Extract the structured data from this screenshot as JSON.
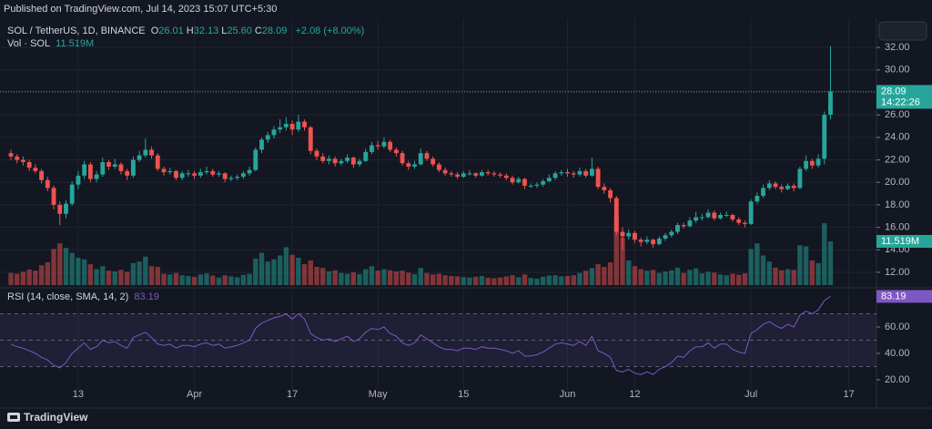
{
  "chart_data": {
    "type": "candlestick",
    "published": "Published on TradingView.com, Jul 14, 2023 15:07 UTC+5:30",
    "symbol": "SOL / TetherUS, 1D, BINANCE",
    "ohlc_prefixes": [
      "O",
      "H",
      "L",
      "C"
    ],
    "ohlc_value_labels": [
      "26.01",
      "32.13",
      "25.60",
      "28.09"
    ],
    "change_label": "+2.08 (+8.00%)",
    "volume_title": "Vol · SOL",
    "volume_last_label": "11.519M",
    "rsi_title": "RSI (14, close, SMA, 14, 2)",
    "countdown": "14:22:26",
    "brand": "TradingView",
    "up_color": "#26a69a",
    "down_color": "#ef5350",
    "grid": true,
    "categories": [
      null,
      null,
      null,
      null,
      null,
      null,
      null,
      null,
      null,
      null,
      null,
      "13",
      null,
      null,
      null,
      null,
      null,
      null,
      null,
      null,
      null,
      null,
      null,
      null,
      null,
      null,
      null,
      null,
      null,
      null,
      "Apr",
      null,
      null,
      null,
      null,
      null,
      null,
      null,
      null,
      null,
      null,
      null,
      null,
      null,
      null,
      null,
      "17",
      null,
      null,
      null,
      null,
      null,
      null,
      null,
      null,
      null,
      null,
      null,
      null,
      null,
      "May",
      null,
      null,
      null,
      null,
      null,
      null,
      null,
      null,
      null,
      null,
      null,
      null,
      null,
      "15",
      null,
      null,
      null,
      null,
      null,
      null,
      null,
      null,
      null,
      null,
      null,
      null,
      null,
      null,
      null,
      null,
      "Jun",
      null,
      null,
      null,
      null,
      null,
      null,
      null,
      null,
      null,
      null,
      "12",
      null,
      null,
      null,
      null,
      null,
      null,
      null,
      null,
      null,
      null,
      null,
      null,
      null,
      null,
      null,
      null,
      null,
      null,
      "Jul",
      null,
      null,
      null,
      null,
      null,
      null,
      null,
      null,
      null,
      null,
      null,
      null,
      null,
      null,
      null,
      "17"
    ],
    "ohlc": [
      [
        22.6,
        22.9,
        22.0,
        22.3
      ],
      [
        22.3,
        22.5,
        21.7,
        22.0
      ],
      [
        22.0,
        22.3,
        21.5,
        21.8
      ],
      [
        21.8,
        22.0,
        21.0,
        21.3
      ],
      [
        21.3,
        21.6,
        20.8,
        21.0
      ],
      [
        21.0,
        21.2,
        19.9,
        20.2
      ],
      [
        20.2,
        20.5,
        19.2,
        19.5
      ],
      [
        19.5,
        19.7,
        17.6,
        18.0
      ],
      [
        18.0,
        18.3,
        16.2,
        17.2
      ],
      [
        17.2,
        18.4,
        16.8,
        18.1
      ],
      [
        18.1,
        20.1,
        17.9,
        19.8
      ],
      [
        19.8,
        21.0,
        19.4,
        20.6
      ],
      [
        20.6,
        21.9,
        20.3,
        21.6
      ],
      [
        21.6,
        21.8,
        20.0,
        20.3
      ],
      [
        20.3,
        21.0,
        20.0,
        20.7
      ],
      [
        20.7,
        22.2,
        20.5,
        21.8
      ],
      [
        21.8,
        22.0,
        21.1,
        21.4
      ],
      [
        21.4,
        22.1,
        21.2,
        21.6
      ],
      [
        21.6,
        21.8,
        20.7,
        21.0
      ],
      [
        21.0,
        21.2,
        20.2,
        20.6
      ],
      [
        20.6,
        22.3,
        20.4,
        22.0
      ],
      [
        22.0,
        22.8,
        21.8,
        22.4
      ],
      [
        22.4,
        23.9,
        22.2,
        22.9
      ],
      [
        22.9,
        23.2,
        22.1,
        22.4
      ],
      [
        22.4,
        22.6,
        21.0,
        21.2
      ],
      [
        21.2,
        21.4,
        20.6,
        20.9
      ],
      [
        20.9,
        21.3,
        20.7,
        21.0
      ],
      [
        21.0,
        21.1,
        20.2,
        20.4
      ],
      [
        20.4,
        21.0,
        20.2,
        20.8
      ],
      [
        20.8,
        21.1,
        20.5,
        20.8
      ],
      [
        20.8,
        21.0,
        20.3,
        20.6
      ],
      [
        20.6,
        21.2,
        20.4,
        20.9
      ],
      [
        20.9,
        21.4,
        20.7,
        21.0
      ],
      [
        21.0,
        21.2,
        20.5,
        20.7
      ],
      [
        20.7,
        21.0,
        20.5,
        20.8
      ],
      [
        20.8,
        20.9,
        20.0,
        20.3
      ],
      [
        20.3,
        20.6,
        20.1,
        20.4
      ],
      [
        20.4,
        20.7,
        20.2,
        20.5
      ],
      [
        20.5,
        21.0,
        20.3,
        20.8
      ],
      [
        20.8,
        21.4,
        20.6,
        21.1
      ],
      [
        21.1,
        23.1,
        21.0,
        22.9
      ],
      [
        22.9,
        24.0,
        22.6,
        23.8
      ],
      [
        23.8,
        24.5,
        23.5,
        24.2
      ],
      [
        24.2,
        25.0,
        23.9,
        24.7
      ],
      [
        24.7,
        25.6,
        24.4,
        24.9
      ],
      [
        24.9,
        25.8,
        24.6,
        25.2
      ],
      [
        25.2,
        25.5,
        24.2,
        24.7
      ],
      [
        24.7,
        26.0,
        24.5,
        25.4
      ],
      [
        25.4,
        25.6,
        24.6,
        24.9
      ],
      [
        24.9,
        25.0,
        22.5,
        22.8
      ],
      [
        22.8,
        23.0,
        22.0,
        22.3
      ],
      [
        22.3,
        22.6,
        21.7,
        21.9
      ],
      [
        21.9,
        22.4,
        21.6,
        22.1
      ],
      [
        22.1,
        22.3,
        21.4,
        21.7
      ],
      [
        21.7,
        22.1,
        21.5,
        21.9
      ],
      [
        21.9,
        22.5,
        21.7,
        22.2
      ],
      [
        22.2,
        22.3,
        21.3,
        21.6
      ],
      [
        21.6,
        22.1,
        21.4,
        21.9
      ],
      [
        21.9,
        23.0,
        21.8,
        22.7
      ],
      [
        22.7,
        23.6,
        22.5,
        23.3
      ],
      [
        23.3,
        23.7,
        22.9,
        23.2
      ],
      [
        23.2,
        24.0,
        23.0,
        23.6
      ],
      [
        23.6,
        23.8,
        22.7,
        22.9
      ],
      [
        22.9,
        23.1,
        22.3,
        22.6
      ],
      [
        22.6,
        22.8,
        21.5,
        21.7
      ],
      [
        21.7,
        21.9,
        21.1,
        21.4
      ],
      [
        21.4,
        21.9,
        21.2,
        21.6
      ],
      [
        21.6,
        23.0,
        21.5,
        22.6
      ],
      [
        22.6,
        22.8,
        21.9,
        22.1
      ],
      [
        22.1,
        22.3,
        21.4,
        21.6
      ],
      [
        21.6,
        21.8,
        20.9,
        21.1
      ],
      [
        21.1,
        21.3,
        20.6,
        20.8
      ],
      [
        20.8,
        21.0,
        20.5,
        20.7
      ],
      [
        20.7,
        20.9,
        20.3,
        20.5
      ],
      [
        20.5,
        21.0,
        20.4,
        20.8
      ],
      [
        20.8,
        21.1,
        20.6,
        20.8
      ],
      [
        20.8,
        20.9,
        20.4,
        20.6
      ],
      [
        20.6,
        21.1,
        20.5,
        20.9
      ],
      [
        20.9,
        21.1,
        20.6,
        20.8
      ],
      [
        20.8,
        21.0,
        20.5,
        20.7
      ],
      [
        20.7,
        20.9,
        20.4,
        20.6
      ],
      [
        20.6,
        20.8,
        20.2,
        20.4
      ],
      [
        20.4,
        20.6,
        19.8,
        20.0
      ],
      [
        20.0,
        20.5,
        19.9,
        20.3
      ],
      [
        20.3,
        20.4,
        19.4,
        19.7
      ],
      [
        19.7,
        19.9,
        19.5,
        19.7
      ],
      [
        19.7,
        20.0,
        19.5,
        19.8
      ],
      [
        19.8,
        20.3,
        19.6,
        20.1
      ],
      [
        20.1,
        20.7,
        20.0,
        20.4
      ],
      [
        20.4,
        21.0,
        20.2,
        20.8
      ],
      [
        20.8,
        21.1,
        20.6,
        20.9
      ],
      [
        20.9,
        21.2,
        20.5,
        20.8
      ],
      [
        20.8,
        21.0,
        20.4,
        20.7
      ],
      [
        20.7,
        21.3,
        20.5,
        21.0
      ],
      [
        21.0,
        21.2,
        20.4,
        20.6
      ],
      [
        20.6,
        22.2,
        20.5,
        21.2
      ],
      [
        21.2,
        21.4,
        19.4,
        19.6
      ],
      [
        19.6,
        19.9,
        19.0,
        19.3
      ],
      [
        19.3,
        19.5,
        18.2,
        18.6
      ],
      [
        18.6,
        18.8,
        15.3,
        15.6
      ],
      [
        15.6,
        16.0,
        14.0,
        15.2
      ],
      [
        15.2,
        15.8,
        14.9,
        15.5
      ],
      [
        15.5,
        15.7,
        14.6,
        14.9
      ],
      [
        14.9,
        15.1,
        14.3,
        14.7
      ],
      [
        14.7,
        15.2,
        14.5,
        14.9
      ],
      [
        14.9,
        15.0,
        14.2,
        14.5
      ],
      [
        14.5,
        15.2,
        14.4,
        15.0
      ],
      [
        15.0,
        15.5,
        14.8,
        15.3
      ],
      [
        15.3,
        15.8,
        15.1,
        15.6
      ],
      [
        15.6,
        16.4,
        15.4,
        16.2
      ],
      [
        16.2,
        16.4,
        15.9,
        16.1
      ],
      [
        16.1,
        16.9,
        16.0,
        16.6
      ],
      [
        16.6,
        17.4,
        16.4,
        16.9
      ],
      [
        16.9,
        17.2,
        16.6,
        16.9
      ],
      [
        16.9,
        17.6,
        16.8,
        17.3
      ],
      [
        17.3,
        17.5,
        16.6,
        16.8
      ],
      [
        16.8,
        17.3,
        16.7,
        17.1
      ],
      [
        17.1,
        17.4,
        16.9,
        17.1
      ],
      [
        17.1,
        17.2,
        16.5,
        16.7
      ],
      [
        16.7,
        16.9,
        16.2,
        16.4
      ],
      [
        16.4,
        16.6,
        16.0,
        16.3
      ],
      [
        16.3,
        18.5,
        16.2,
        18.3
      ],
      [
        18.3,
        19.1,
        18.1,
        18.8
      ],
      [
        18.8,
        19.8,
        18.6,
        19.5
      ],
      [
        19.5,
        20.2,
        19.3,
        19.9
      ],
      [
        19.9,
        20.1,
        19.4,
        19.6
      ],
      [
        19.6,
        19.8,
        19.1,
        19.4
      ],
      [
        19.4,
        19.9,
        19.3,
        19.7
      ],
      [
        19.7,
        19.9,
        19.2,
        19.5
      ],
      [
        19.5,
        21.4,
        19.4,
        21.2
      ],
      [
        21.2,
        22.4,
        21.0,
        21.9
      ],
      [
        21.9,
        22.1,
        21.2,
        21.5
      ],
      [
        21.5,
        22.5,
        21.3,
        22.1
      ],
      [
        22.1,
        26.3,
        21.6,
        26.01
      ],
      [
        26.01,
        32.13,
        25.6,
        28.09
      ],
      null,
      null,
      null
    ],
    "ylim": [
      10.7,
      34.6
    ],
    "yticks": [
      {
        "value": 12,
        "label": "12.00"
      },
      {
        "value": 14,
        "label": "14.00"
      },
      {
        "value": 16,
        "label": "16.00"
      },
      {
        "value": 18,
        "label": "18.00"
      },
      {
        "value": 20,
        "label": "20.00"
      },
      {
        "value": 22,
        "label": "22.00"
      },
      {
        "value": 24,
        "label": "24.00"
      },
      {
        "value": 26,
        "label": "26.00"
      },
      {
        "value": 28,
        "label": "28.00"
      },
      {
        "value": 30,
        "label": "30.00"
      },
      {
        "value": 32,
        "label": "32.00"
      }
    ],
    "volume": [
      3.2,
      3.0,
      3.5,
      4.1,
      3.8,
      5.2,
      6.0,
      9.5,
      11.0,
      9.8,
      8.5,
      7.2,
      6.8,
      5.5,
      4.2,
      5.0,
      3.8,
      3.6,
      4.0,
      3.5,
      5.8,
      6.2,
      7.5,
      5.0,
      4.8,
      3.0,
      2.8,
      3.2,
      2.6,
      2.4,
      2.2,
      2.8,
      3.1,
      2.5,
      2.0,
      2.6,
      2.3,
      2.1,
      2.7,
      3.0,
      7.0,
      8.5,
      6.2,
      6.8,
      7.8,
      10.0,
      8.0,
      7.2,
      5.5,
      6.5,
      4.8,
      4.5,
      3.6,
      3.9,
      3.2,
      3.0,
      3.4,
      2.9,
      4.2,
      5.0,
      3.8,
      4.2,
      3.9,
      3.6,
      3.8,
      3.3,
      2.9,
      4.5,
      3.2,
      2.8,
      3.0,
      2.6,
      2.4,
      2.3,
      2.1,
      2.0,
      2.2,
      2.4,
      1.9,
      1.8,
      2.0,
      2.3,
      2.6,
      2.1,
      2.8,
      1.9,
      1.7,
      2.2,
      2.5,
      2.6,
      2.3,
      2.4,
      2.6,
      3.2,
      3.8,
      4.5,
      5.5,
      4.8,
      6.0,
      18.0,
      12.5,
      6.5,
      5.0,
      4.2,
      3.8,
      4.0,
      3.2,
      3.6,
      3.9,
      4.6,
      3.2,
      4.0,
      4.4,
      3.1,
      3.5,
      3.3,
      2.8,
      2.6,
      3.0,
      2.7,
      3.1,
      9.5,
      11.0,
      7.8,
      6.2,
      4.6,
      3.9,
      4.2,
      4.0,
      10.5,
      10.2,
      6.5,
      5.8,
      16.3,
      11.519,
      null,
      null,
      null
    ],
    "rsi": {
      "color": "#7e57c2",
      "ylim": [
        11,
        88.3
      ],
      "yticks": [
        {
          "value": 60,
          "label": "60.00"
        },
        {
          "value": 40,
          "label": "40.00"
        },
        {
          "value": 20,
          "label": "20.00"
        }
      ],
      "bands": [
        30,
        50,
        70
      ],
      "values": [
        47,
        45,
        44,
        42,
        40,
        37,
        35,
        31,
        29,
        33,
        40,
        44,
        48,
        43,
        45,
        50,
        48,
        49,
        46,
        44,
        52,
        54,
        56,
        52,
        47,
        46,
        47,
        44,
        46,
        46,
        45,
        47,
        48,
        46,
        47,
        44,
        45,
        46,
        48,
        50,
        59,
        63,
        65,
        67,
        68,
        70,
        66,
        70,
        66,
        55,
        52,
        50,
        51,
        49,
        51,
        53,
        49,
        51,
        56,
        59,
        58,
        60,
        55,
        53,
        48,
        46,
        48,
        54,
        51,
        48,
        45,
        43,
        43,
        42,
        44,
        44,
        43,
        45,
        44,
        44,
        43,
        42,
        40,
        42,
        38,
        38,
        39,
        41,
        44,
        47,
        48,
        47,
        46,
        49,
        46,
        53,
        42,
        40,
        37,
        27,
        26,
        28,
        25,
        24,
        26,
        24,
        28,
        30,
        33,
        38,
        37,
        42,
        45,
        45,
        48,
        44,
        47,
        47,
        43,
        41,
        40,
        55,
        58,
        62,
        64,
        61,
        59,
        62,
        60,
        69,
        72,
        70,
        73,
        80,
        83.19,
        null,
        null,
        null
      ]
    }
  }
}
